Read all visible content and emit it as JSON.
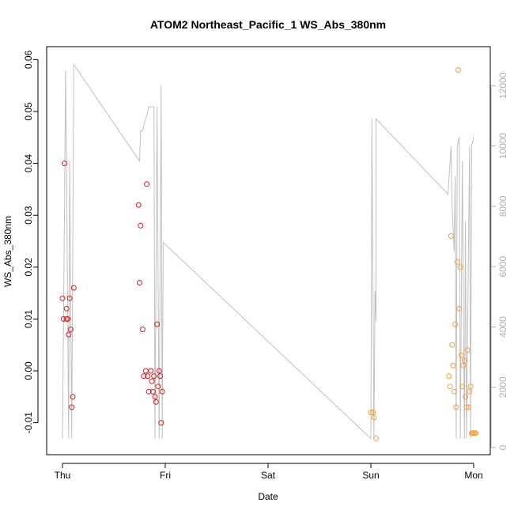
{
  "chart_data": {
    "type": "scatter",
    "title": "ATOM2 Northeast_Pacific_1 WS_Abs_380nm",
    "xlabel": "Date",
    "ylabel": "WS_Abs_380nm",
    "x_ticks": [
      "Thu",
      "Fri",
      "Sat",
      "Sun",
      "Mon"
    ],
    "x_unit": "days",
    "xlim": [
      -0.2,
      4.1
    ],
    "ylim": [
      -0.0155,
      0.0615
    ],
    "y_ticks": [
      -0.01,
      0.0,
      0.01,
      0.02,
      0.03,
      0.04,
      0.05,
      0.06
    ],
    "y_tick_labels": [
      "-0.01",
      "0.00",
      "0.01",
      "0.02",
      "0.03",
      "0.04",
      "0.05",
      "0.06"
    ],
    "y2_ticks": [
      0,
      2000,
      4000,
      6000,
      8000,
      10000,
      12000
    ],
    "y2_tick_labels": [
      "0",
      "2000",
      "4000",
      "6000",
      "8000",
      "10000",
      "12000"
    ],
    "y2lim": [
      -300,
      13000
    ],
    "grid": false,
    "series": [
      {
        "color": "#e41a1c",
        "points": [
          [
            0.0,
            0.014
          ],
          [
            0.01,
            0.01
          ],
          [
            0.02,
            0.04
          ],
          [
            0.04,
            0.01
          ],
          [
            0.04,
            0.012
          ],
          [
            0.05,
            0.01
          ],
          [
            0.06,
            0.007
          ],
          [
            0.07,
            0.014
          ],
          [
            0.08,
            0.008
          ],
          [
            0.09,
            -0.007
          ],
          [
            0.1,
            -0.005
          ],
          [
            0.11,
            0.016
          ],
          [
            0.74,
            0.032
          ],
          [
            0.75,
            0.017
          ],
          [
            0.76,
            0.028
          ],
          [
            0.78,
            0.008
          ],
          [
            0.79,
            -0.001
          ],
          [
            0.81,
            0.0
          ],
          [
            0.82,
            0.036
          ],
          [
            0.83,
            -0.001
          ],
          [
            0.84,
            -0.004
          ],
          [
            0.86,
            0.0
          ],
          [
            0.87,
            -0.002
          ],
          [
            0.88,
            -0.004
          ],
          [
            0.89,
            -0.001
          ],
          [
            0.9,
            -0.005
          ],
          [
            0.91,
            -0.006
          ],
          [
            0.92,
            0.009
          ],
          [
            0.93,
            -0.003
          ],
          [
            0.94,
            0.0
          ],
          [
            0.95,
            -0.001
          ],
          [
            0.96,
            -0.01
          ],
          [
            0.97,
            -0.004
          ]
        ]
      },
      {
        "color": "#f4a040",
        "points": [
          [
            3.0,
            -0.008
          ],
          [
            3.02,
            -0.008
          ],
          [
            3.03,
            -0.009
          ],
          [
            3.05,
            -0.013
          ],
          [
            3.76,
            -0.001
          ],
          [
            3.77,
            -0.003
          ],
          [
            3.78,
            0.026
          ],
          [
            3.79,
            0.005
          ],
          [
            3.8,
            0.001
          ],
          [
            3.81,
            -0.004
          ],
          [
            3.82,
            0.009
          ],
          [
            3.83,
            -0.007
          ],
          [
            3.84,
            0.021
          ],
          [
            3.85,
            0.058
          ],
          [
            3.86,
            0.012
          ],
          [
            3.87,
            0.02
          ],
          [
            3.88,
            0.003
          ],
          [
            3.89,
            -0.003
          ],
          [
            3.9,
            0.001
          ],
          [
            3.91,
            0.002
          ],
          [
            3.92,
            -0.005
          ],
          [
            3.93,
            -0.007
          ],
          [
            3.94,
            0.004
          ],
          [
            3.95,
            -0.007
          ],
          [
            3.96,
            -0.004
          ],
          [
            3.97,
            -0.003
          ],
          [
            3.98,
            -0.012
          ],
          [
            3.99,
            -0.012
          ],
          [
            4.0,
            -0.012
          ],
          [
            4.01,
            -0.012
          ],
          [
            4.02,
            -0.012
          ]
        ]
      }
    ],
    "secondary_line": {
      "color": "#c0c0c0",
      "points": [
        [
          0.0,
          300
        ],
        [
          0.02,
          8000
        ],
        [
          0.03,
          12500
        ],
        [
          0.04,
          9000
        ],
        [
          0.06,
          300
        ],
        [
          0.07,
          9500
        ],
        [
          0.09,
          300
        ],
        [
          0.11,
          12700
        ],
        [
          0.75,
          9500
        ],
        [
          0.76,
          10500
        ],
        [
          0.78,
          10500
        ],
        [
          0.8,
          10800
        ],
        [
          0.82,
          11000
        ],
        [
          0.84,
          11300
        ],
        [
          0.86,
          11300
        ],
        [
          0.89,
          11300
        ],
        [
          0.9,
          300
        ],
        [
          0.92,
          11300
        ],
        [
          0.94,
          300
        ],
        [
          0.96,
          12000
        ],
        [
          0.97,
          300
        ],
        [
          0.98,
          6800
        ],
        [
          3.0,
          300
        ],
        [
          3.01,
          10900
        ],
        [
          3.03,
          300
        ],
        [
          3.04,
          5200
        ],
        [
          3.05,
          4200
        ],
        [
          3.05,
          10900
        ],
        [
          3.75,
          8400
        ],
        [
          3.78,
          10000
        ],
        [
          3.79,
          8000
        ],
        [
          3.81,
          6500
        ],
        [
          3.82,
          9000
        ],
        [
          3.83,
          300
        ],
        [
          3.84,
          10000
        ],
        [
          3.86,
          10300
        ],
        [
          3.87,
          300
        ],
        [
          3.89,
          9500
        ],
        [
          3.91,
          300
        ],
        [
          3.92,
          7500
        ],
        [
          3.93,
          300
        ],
        [
          3.96,
          10000
        ],
        [
          3.97,
          300
        ],
        [
          3.98,
          10000
        ],
        [
          4.0,
          10300
        ]
      ]
    }
  }
}
